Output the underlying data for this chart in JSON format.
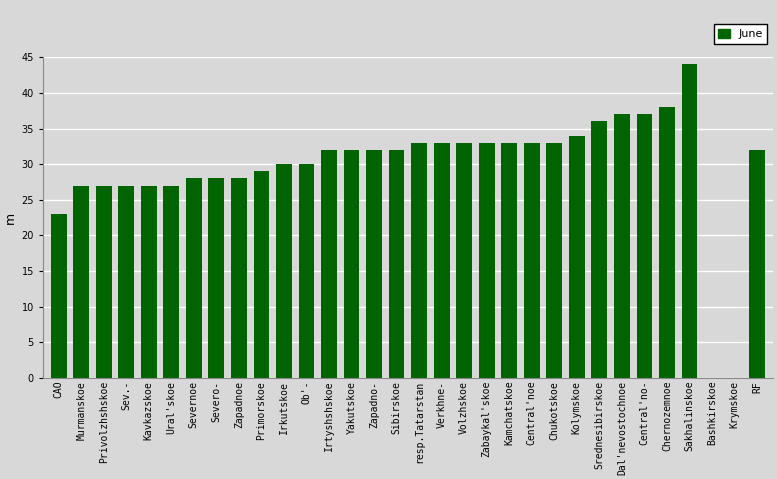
{
  "categories": [
    "CAO",
    "Murmanskoe",
    "Privolzhshskoe",
    "Sev.-",
    "Kavkazskoe",
    "Ural'skoe",
    "Severnoe",
    "Severo-",
    "Zapadnoe",
    "Primorskoe",
    "Irkutskoe",
    "Ob'-",
    "Irtyshshskoe",
    "Yakutskoe",
    "Zapadno-",
    "Sibirskoe",
    "resp.Tatarstan",
    "Verkhne-",
    "Volzhskoe",
    "Zabaykal'skoe",
    "Kamchatskoe",
    "Central'noe",
    "Chukotskoe",
    "Kolymskoe",
    "Srednesibirskoe",
    "Dal'nevostochnoe",
    "Central'no-",
    "Chernozemnoe",
    "Sakhalinskoe",
    "Bashkirskoe",
    "Krymskoe",
    "RF"
  ],
  "values": [
    23,
    27,
    27,
    27,
    27,
    27,
    28,
    28,
    28,
    29,
    30,
    30,
    32,
    32,
    32,
    32,
    33,
    33,
    33,
    33,
    33,
    33,
    33,
    34,
    36,
    37,
    37,
    38,
    44,
    0,
    0,
    32
  ],
  "bar_color": "#006400",
  "ylabel": "m",
  "ylim": [
    0,
    45
  ],
  "yticks": [
    0,
    5,
    10,
    15,
    20,
    25,
    30,
    35,
    40,
    45
  ],
  "legend_label": "June",
  "bg_color": "#d8d8d8",
  "plot_bg_color": "#d8d8d8",
  "grid_color": "#ffffff",
  "tick_fontsize": 7
}
